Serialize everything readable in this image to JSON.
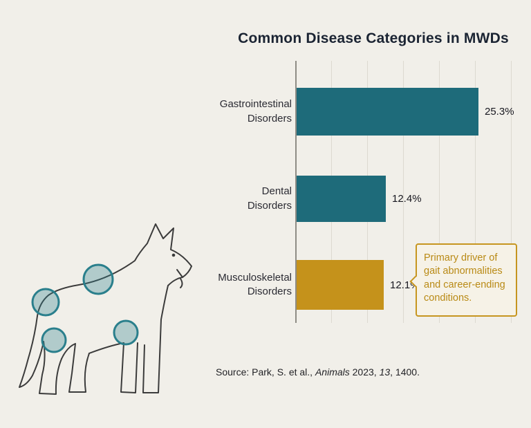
{
  "page": {
    "background": "#f1efe9"
  },
  "title": "Common Disease Categories in MWDs",
  "chart_data": {
    "type": "bar",
    "orientation": "horizontal",
    "title": "Common Disease Categories in MWDs",
    "categories": [
      "Gastrointestinal Disorders",
      "Dental Disorders",
      "Musculoskeletal Disorders"
    ],
    "categories_lines": [
      [
        "Gastrointestinal",
        "Disorders"
      ],
      [
        "Dental",
        "Disorders"
      ],
      [
        "Musculoskeletal",
        "Disorders"
      ]
    ],
    "values": [
      25.3,
      12.4,
      12.1
    ],
    "value_labels": [
      "25.3%",
      "12.4%",
      "12.1%"
    ],
    "unit": "%",
    "xlim": [
      0,
      30
    ],
    "grid": true,
    "legend": "none",
    "bar_colors": [
      "#1e6b7a",
      "#1e6b7a",
      "#c5921b"
    ],
    "annotation": {
      "text": "Primary driver of gait abnormalities and career-ending conditions.",
      "applies_to": "Musculoskeletal Disorders",
      "border_color": "#c6951f",
      "text_color": "#b98a15"
    }
  },
  "source": {
    "prefix": "Source: Park, S. et al., ",
    "journal_italic": "Animals",
    "middle": " 2023, ",
    "volume_italic": "13",
    "suffix": ", 1400."
  },
  "illustration": {
    "subject": "military working dog line drawing",
    "joint_highlight_count": 4,
    "highlight_color": "#2a7f8c"
  },
  "colors": {
    "teal": "#1e6b7a",
    "gold": "#c5921b",
    "background": "#f1efe9"
  }
}
